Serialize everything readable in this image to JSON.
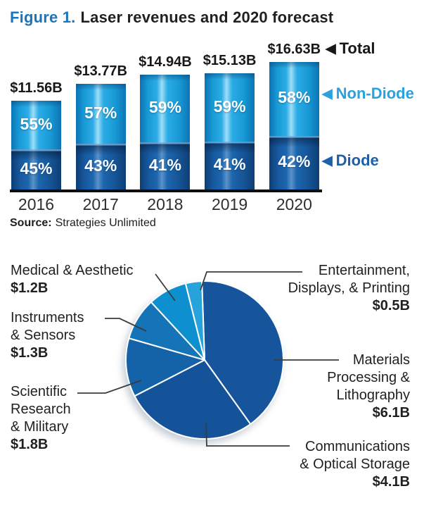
{
  "figure": {
    "title_prefix": "Figure 1.",
    "title_rest": "Laser revenues and 2020 forecast",
    "source_label": "Source:",
    "source_text": "Strategies Unlimited"
  },
  "icons": {
    "pointer_left": "◀"
  },
  "colors": {
    "title_blue": "#1b75bc",
    "non_diode_blue": "#2aa2dd",
    "diode_blue": "#1e5fa8",
    "axis_black": "#0d0d0d",
    "pie_main_blue": "#16559c",
    "leader_line": "#3c3c3c"
  },
  "chart_data": [
    {
      "type": "bar",
      "stacked": true,
      "title": "Laser revenues and 2020 forecast",
      "unit": "billions USD",
      "categories": [
        "2016",
        "2017",
        "2018",
        "2019",
        "2020"
      ],
      "totals_billions": [
        11.56,
        13.77,
        14.94,
        15.13,
        16.63
      ],
      "total_labels": [
        "$11.56B",
        "$13.77B",
        "$14.94B",
        "$15.13B",
        "$16.63B"
      ],
      "series": [
        {
          "name": "Non-Diode",
          "position": "top",
          "pct": [
            55,
            57,
            59,
            59,
            58
          ],
          "pct_labels": [
            "55%",
            "57%",
            "59%",
            "59%",
            "58%"
          ],
          "color": "#2cace5"
        },
        {
          "name": "Diode",
          "position": "bottom",
          "pct": [
            45,
            43,
            41,
            41,
            42
          ],
          "pct_labels": [
            "45%",
            "43%",
            "41%",
            "41%",
            "42%"
          ],
          "color": "#1c66ae"
        }
      ],
      "annotations": {
        "total": "Total",
        "non_diode": "Non-Diode",
        "diode": "Diode"
      },
      "legend_position": "right",
      "grid": false,
      "source": "Strategies Unlimited"
    },
    {
      "type": "pie",
      "unit": "billions USD",
      "total_billions": 15.0,
      "start_angle_deg": -2,
      "direction": "clockwise",
      "slices": [
        {
          "label": "Materials\nProcessing &\nLithography",
          "value": 6.1,
          "value_label": "$6.1B",
          "color": "#16559c"
        },
        {
          "label": "Communications\n& Optical Storage",
          "value": 4.1,
          "value_label": "$4.1B",
          "color": "#14529a"
        },
        {
          "label": "Scientific\nResearch\n& Military",
          "value": 1.8,
          "value_label": "$1.8B",
          "color": "#1463a9"
        },
        {
          "label": "Instruments\n& Sensors",
          "value": 1.3,
          "value_label": "$1.3B",
          "color": "#1574b8"
        },
        {
          "label": "Medical & Aesthetic",
          "value": 1.2,
          "value_label": "$1.2B",
          "color": "#0d8fd0"
        },
        {
          "label": "Entertainment,\nDisplays, & Printing",
          "value": 0.5,
          "value_label": "$0.5B",
          "color": "#27a3dc"
        }
      ]
    }
  ]
}
